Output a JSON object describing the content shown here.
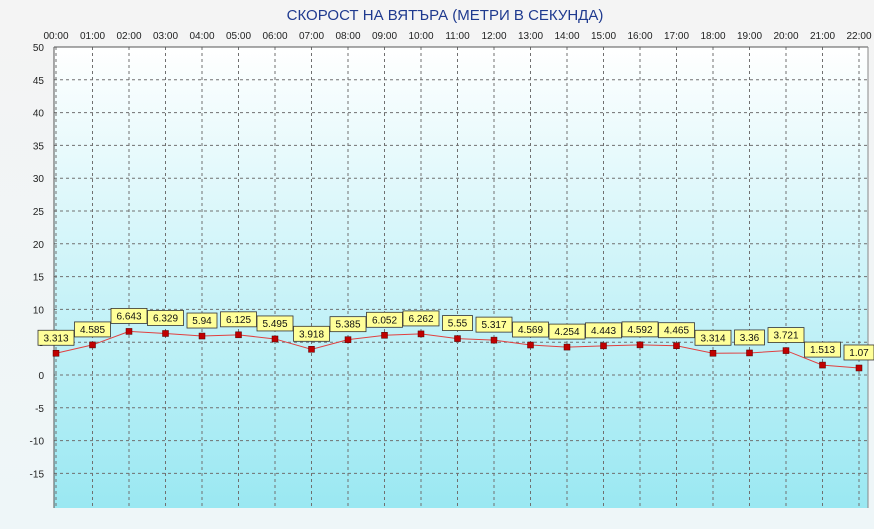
{
  "chart_data": {
    "type": "line",
    "title": "СКОРОСТ НА ВЯТЪРА (МЕТРИ В СЕКУНДА)",
    "x": [
      "00:00",
      "01:00",
      "02:00",
      "03:00",
      "04:00",
      "05:00",
      "06:00",
      "07:00",
      "08:00",
      "09:00",
      "10:00",
      "11:00",
      "12:00",
      "13:00",
      "14:00",
      "15:00",
      "16:00",
      "17:00",
      "18:00",
      "19:00",
      "20:00",
      "21:00",
      "22:00"
    ],
    "values": [
      3.313,
      4.585,
      6.643,
      6.329,
      5.94,
      6.125,
      5.495,
      3.918,
      5.385,
      6.052,
      6.262,
      5.55,
      5.317,
      4.569,
      4.254,
      4.443,
      4.592,
      4.465,
      3.314,
      3.36,
      3.721,
      1.513,
      1.07
    ],
    "ylim": [
      -20,
      50
    ],
    "yticks": [
      50,
      45,
      40,
      35,
      30,
      25,
      20,
      15,
      10,
      5,
      0,
      -5,
      -10,
      -15
    ],
    "xaxis_position": "top",
    "grid": true,
    "colors": {
      "line": "#e04040",
      "marker": "#c00000",
      "label_fill": "#ffff99",
      "plot_bg_top": "#ffffff",
      "plot_bg_bottom": "#9ae8f2",
      "title": "#1f3a8f",
      "grid": "#707070"
    }
  }
}
